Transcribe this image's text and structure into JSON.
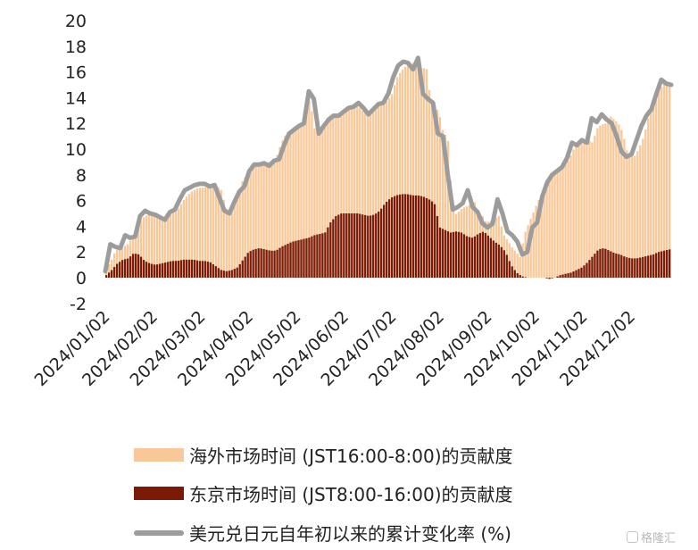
{
  "chart_data": {
    "type": "bar+line",
    "yticks": [
      "20",
      "18",
      "16",
      "14",
      "12",
      "10",
      "8",
      "6",
      "4",
      "2",
      "0",
      "-2"
    ],
    "ylim": [
      -2,
      20
    ],
    "xticks": [
      "2024/01/02",
      "2024/02/02",
      "2024/03/02",
      "2024/04/02",
      "2024/05/02",
      "2024/06/02",
      "2024/07/02",
      "2024/08/02",
      "2024/09/02",
      "2024/10/02",
      "2024/11/02",
      "2024/12/02"
    ],
    "n_days": 255,
    "series": [
      {
        "name": "海外市场时间 (JST16:00-8:00)的贡献度",
        "kind": "bar",
        "color": "#f9c898",
        "values": [
          0.8,
          1.2,
          2.0,
          2.3,
          2.4,
          2.6,
          3.0,
          3.4,
          4.4,
          4.8,
          4.9,
          4.8,
          4.6,
          4.5,
          4.6,
          4.9,
          5.3,
          5.4,
          6.0,
          6.4,
          6.7,
          6.9,
          7.0,
          7.0,
          7.1,
          7.2,
          7.1,
          6.8,
          5.4,
          5.1,
          5.8,
          6.6,
          7.6,
          8.0,
          8.5,
          8.7,
          8.8,
          8.7,
          9.0,
          9.1,
          9.5,
          10.5,
          11.1,
          11.4,
          11.7,
          11.9,
          12.0,
          14.3,
          13.3,
          11.2,
          11.5,
          12.0,
          12.5,
          12.8,
          12.7,
          12.9,
          13.1,
          13.2,
          13.3,
          13.4,
          13.0,
          12.8,
          13.0,
          13.3,
          13.5,
          13.6,
          13.8,
          14.3,
          15.5,
          16.0,
          16.4,
          16.6,
          16.7,
          16.7,
          16.2,
          16.4,
          13.8,
          13.4,
          12.8,
          11.2,
          11.0,
          6.1,
          4.9,
          5.3,
          5.5,
          5.6,
          6.3,
          5.0,
          4.9,
          4.3,
          4.4,
          4.6,
          4.8,
          3.4,
          2.9,
          2.4,
          2.0,
          1.6,
          3.4,
          4.2,
          5.0,
          5.8,
          6.5,
          7.2,
          7.8,
          8.1,
          8.4,
          8.6,
          9.0,
          9.6,
          10.4,
          10.8,
          10.5,
          10.7,
          10.5,
          11.6,
          11.9,
          12.0,
          12.6,
          12.3,
          12.0,
          11.3,
          9.9,
          9.4,
          9.5,
          10.2,
          11.0,
          12.4,
          13.4,
          14.5,
          14.8,
          15.2,
          15.0
        ],
        "display_note": "bars sampled across trading days"
      },
      {
        "name": "东京市场时间 (JST8:00-16:00)的贡献度",
        "kind": "bar",
        "color": "#7b1a05",
        "values": [
          0.2,
          0.6,
          1.1,
          1.4,
          1.5,
          1.9,
          1.8,
          1.3,
          1.1,
          1.0,
          1.1,
          1.2,
          1.3,
          1.3,
          1.4,
          1.4,
          1.4,
          1.3,
          1.3,
          1.2,
          0.9,
          0.6,
          0.5,
          0.6,
          0.8,
          1.4,
          2.0,
          2.2,
          2.3,
          2.2,
          2.1,
          2.1,
          2.4,
          2.6,
          2.8,
          2.9,
          3.0,
          3.1,
          3.3,
          3.4,
          3.5,
          4.3,
          4.8,
          5.0,
          5.0,
          5.0,
          5.0,
          4.9,
          4.8,
          4.9,
          5.2,
          5.8,
          6.2,
          6.4,
          6.5,
          6.5,
          6.4,
          6.4,
          6.3,
          6.1,
          5.8,
          3.9,
          3.7,
          3.5,
          3.6,
          3.5,
          3.2,
          3.1,
          3.4,
          3.6,
          3.2,
          2.8,
          2.5,
          2.0,
          1.0,
          0.4,
          0.1,
          0.0,
          0.0,
          0.0,
          0.0,
          -0.1,
          0.0,
          0.2,
          0.3,
          0.4,
          0.6,
          0.8,
          1.2,
          1.7,
          2.2,
          2.3,
          2.1,
          1.9,
          1.8,
          1.6,
          1.5,
          1.5,
          1.6,
          1.7,
          1.8,
          2.0,
          2.1,
          2.2
        ],
        "display_note": "bars sampled across trading days"
      },
      {
        "name": "美元兑日元自年初以来的累计变化率 (%)",
        "kind": "line",
        "color": "#9c9c9c",
        "values": [
          0.5,
          2.6,
          2.4,
          2.3,
          3.3,
          3.1,
          3.2,
          4.8,
          5.2,
          5.0,
          4.9,
          4.7,
          4.5,
          5.1,
          5.3,
          6.1,
          6.8,
          7.0,
          7.2,
          7.3,
          7.3,
          7.1,
          7.2,
          6.2,
          5.2,
          5.0,
          5.9,
          6.7,
          7.1,
          8.3,
          8.8,
          8.8,
          8.9,
          8.7,
          9.1,
          9.2,
          10.3,
          11.2,
          11.5,
          11.8,
          12.0,
          14.5,
          13.9,
          11.2,
          11.8,
          12.3,
          12.6,
          12.6,
          12.9,
          13.2,
          13.3,
          13.6,
          13.2,
          12.7,
          13.1,
          13.5,
          13.6,
          14.3,
          15.6,
          16.5,
          16.8,
          16.7,
          16.2,
          17.1,
          14.3,
          13.9,
          13.6,
          11.2,
          11.0,
          8.0,
          5.3,
          5.5,
          5.8,
          6.8,
          5.5,
          5.1,
          4.2,
          3.9,
          4.2,
          6.1,
          5.0,
          3.6,
          3.3,
          2.8,
          1.8,
          2.0,
          3.9,
          4.3,
          6.3,
          7.4,
          8.0,
          8.3,
          8.6,
          9.3,
          10.5,
          10.3,
          10.7,
          10.5,
          12.4,
          12.1,
          12.7,
          12.3,
          12.0,
          11.0,
          9.8,
          9.4,
          9.6,
          10.7,
          11.8,
          12.6,
          13.1,
          14.3,
          15.4,
          15.1,
          15.0
        ]
      }
    ]
  },
  "legend": {
    "item1": "海外市场时间 (JST16:00-8:00)的贡献度",
    "item2": "东京市场时间 (JST8:00-16:00)的贡献度",
    "item3": "美元兑日元自年初以来的累计变化率 (%)"
  },
  "watermark": "格隆汇"
}
